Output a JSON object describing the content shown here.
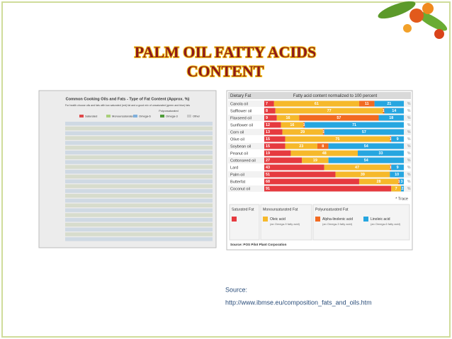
{
  "slide": {
    "title_lines": [
      "PALM OIL FATTY ACIDS",
      "CONTENT"
    ],
    "source_label": "Source:",
    "source_url": "http://www.ibmse.eu/composition_fats_and_oils.htm"
  },
  "left_image": {
    "title": "Common Cooking Oils and Fats - Type of Fat Content (Approx. %)",
    "subtitle": "For health choose oils and fats with low saturated (red) fat and a good mix of unsaturated (green and blue) fats",
    "group_label": "Polyunsaturated",
    "legend": [
      {
        "name": "Saturated",
        "color": "#e0494a"
      },
      {
        "name": "Monounsaturated",
        "color": "#a9cf7a"
      },
      {
        "name": "Omega-6",
        "color": "#7fb0dd"
      },
      {
        "name": "Omega-3",
        "color": "#4f9c3a"
      },
      {
        "name": "Other",
        "color": "#c9c9c9"
      }
    ]
  },
  "chart_data": {
    "type": "bar",
    "orientation": "horizontal",
    "stacked": true,
    "header_left": "Dietary Fat",
    "header_right": "Fatty acid content normalized to 100 percent",
    "categories": [
      "Canola oil",
      "Safflower oil",
      "Flaxseed oil",
      "Sunflower oil",
      "Corn oil",
      "Olive oil",
      "Soybean oil",
      "Peanut oil",
      "Cottonseed oil",
      "Lard",
      "Palm oil",
      "Butterfat",
      "Coconut oil"
    ],
    "xlim": [
      0,
      100
    ],
    "unit": "%",
    "trace_note": "* Trace",
    "series": [
      {
        "name": "Saturated Fat",
        "color": "#e63a3f",
        "values": [
          7,
          8,
          9,
          12,
          13,
          15,
          15,
          19,
          27,
          43,
          51,
          68,
          91
        ]
      },
      {
        "name": "Oleic acid",
        "color": "#f6b92b",
        "values": [
          61,
          77,
          16,
          16,
          29,
          75,
          23,
          48,
          19,
          47,
          39,
          28,
          7
        ]
      },
      {
        "name": "Alpha-linolenic acid",
        "color": "#f26a21",
        "values": [
          11,
          1,
          57,
          1,
          1,
          1,
          8,
          null,
          null,
          1,
          null,
          1,
          null
        ],
        "value_labels": [
          null,
          null,
          null,
          null,
          null,
          null,
          null,
          "•",
          "•",
          null,
          "•",
          null,
          null
        ]
      },
      {
        "name": "Linoleic acid",
        "color": "#26a6e0",
        "values": [
          21,
          14,
          18,
          71,
          57,
          9,
          54,
          33,
          54,
          9,
          10,
          3,
          2
        ]
      }
    ],
    "legend_groups": [
      {
        "title": "Saturated Fat",
        "items": [
          {
            "series": 0
          }
        ]
      },
      {
        "title": "Monounsaturated Fat",
        "items": [
          {
            "series": 1,
            "note": "(an Omega-9 fatty acid)"
          }
        ]
      },
      {
        "title": "Polyunsaturated Fat",
        "items": [
          {
            "series": 2,
            "note": "(an Omega-3 fatty acid)"
          },
          {
            "series": 3,
            "note": "(an Omega-6 fatty acid)"
          }
        ]
      }
    ],
    "source": "Source: POS Pilot Plant Corporation"
  }
}
